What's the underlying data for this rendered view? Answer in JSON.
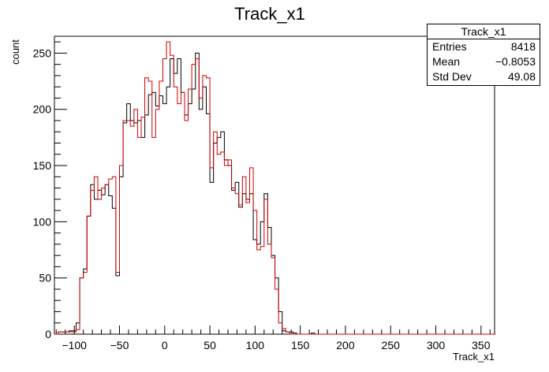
{
  "chart_data": {
    "type": "histogram",
    "title": "Track_x1",
    "xlabel": "Track_x1",
    "ylabel": "count",
    "xlim": [
      -122,
      365
    ],
    "ylim": [
      0,
      265
    ],
    "bin_width": 4,
    "x_ticks": [
      -100,
      -50,
      0,
      50,
      100,
      150,
      200,
      250,
      300,
      350
    ],
    "y_ticks": [
      0,
      50,
      100,
      150,
      200,
      250
    ],
    "grid": false,
    "stats_placement": "top-right",
    "stats": {
      "title": "Track_x1",
      "rows": [
        {
          "label": "Entries",
          "value": "8418"
        },
        {
          "label": "Mean",
          "value": "−0.8053"
        },
        {
          "label": "Std Dev",
          "value": "49.08"
        }
      ]
    },
    "series": [
      {
        "color": "#000000",
        "bins_start": -122,
        "values": [
          0,
          2,
          2,
          2,
          3,
          3,
          10,
          50,
          58,
          105,
          133,
          120,
          128,
          124,
          133,
          123,
          112,
          52,
          140,
          188,
          205,
          190,
          188,
          190,
          175,
          195,
          213,
          215,
          203,
          212,
          205,
          220,
          245,
          232,
          245,
          215,
          195,
          205,
          218,
          250,
          200,
          220,
          196,
          135,
          170,
          175,
          180,
          155,
          150,
          128,
          135,
          113,
          125,
          120,
          125,
          84,
          80,
          100,
          125,
          95,
          70,
          50,
          20,
          3,
          2,
          2,
          1,
          0,
          0,
          0,
          0,
          1,
          0,
          0,
          0,
          0,
          0,
          0,
          0,
          0,
          0,
          0,
          0,
          0,
          0,
          0,
          0,
          0,
          0,
          0,
          0,
          0,
          0,
          0,
          0,
          0,
          0,
          0,
          0,
          0,
          0,
          0,
          0,
          0,
          0,
          0,
          0,
          0,
          0,
          0,
          0,
          0,
          0,
          0,
          0,
          0,
          0,
          0,
          0,
          0,
          0,
          0
        ]
      },
      {
        "color": "#cc0000",
        "bins_start": -122,
        "values": [
          0,
          2,
          2,
          2,
          2,
          2,
          4,
          50,
          55,
          105,
          128,
          140,
          120,
          130,
          133,
          138,
          140,
          55,
          150,
          190,
          190,
          185,
          200,
          175,
          193,
          228,
          225,
          175,
          200,
          225,
          245,
          260,
          248,
          220,
          205,
          215,
          190,
          218,
          240,
          245,
          210,
          230,
          228,
          148,
          180,
          160,
          162,
          150,
          155,
          130,
          125,
          115,
          140,
          117,
          148,
          110,
          75,
          78,
          120,
          80,
          68,
          40,
          10,
          5,
          2,
          0,
          0,
          0,
          0,
          0,
          0,
          0,
          0,
          0,
          0,
          0,
          0,
          0,
          0,
          0,
          0,
          0,
          0,
          0,
          0,
          0,
          0,
          0,
          0,
          0,
          0,
          0,
          0,
          0,
          0,
          0,
          0,
          0,
          0,
          0,
          0,
          0,
          0,
          0,
          0,
          0,
          0,
          0,
          0,
          0,
          0,
          0,
          0,
          0,
          0,
          0,
          0,
          0,
          0,
          0,
          0,
          0
        ]
      }
    ]
  }
}
